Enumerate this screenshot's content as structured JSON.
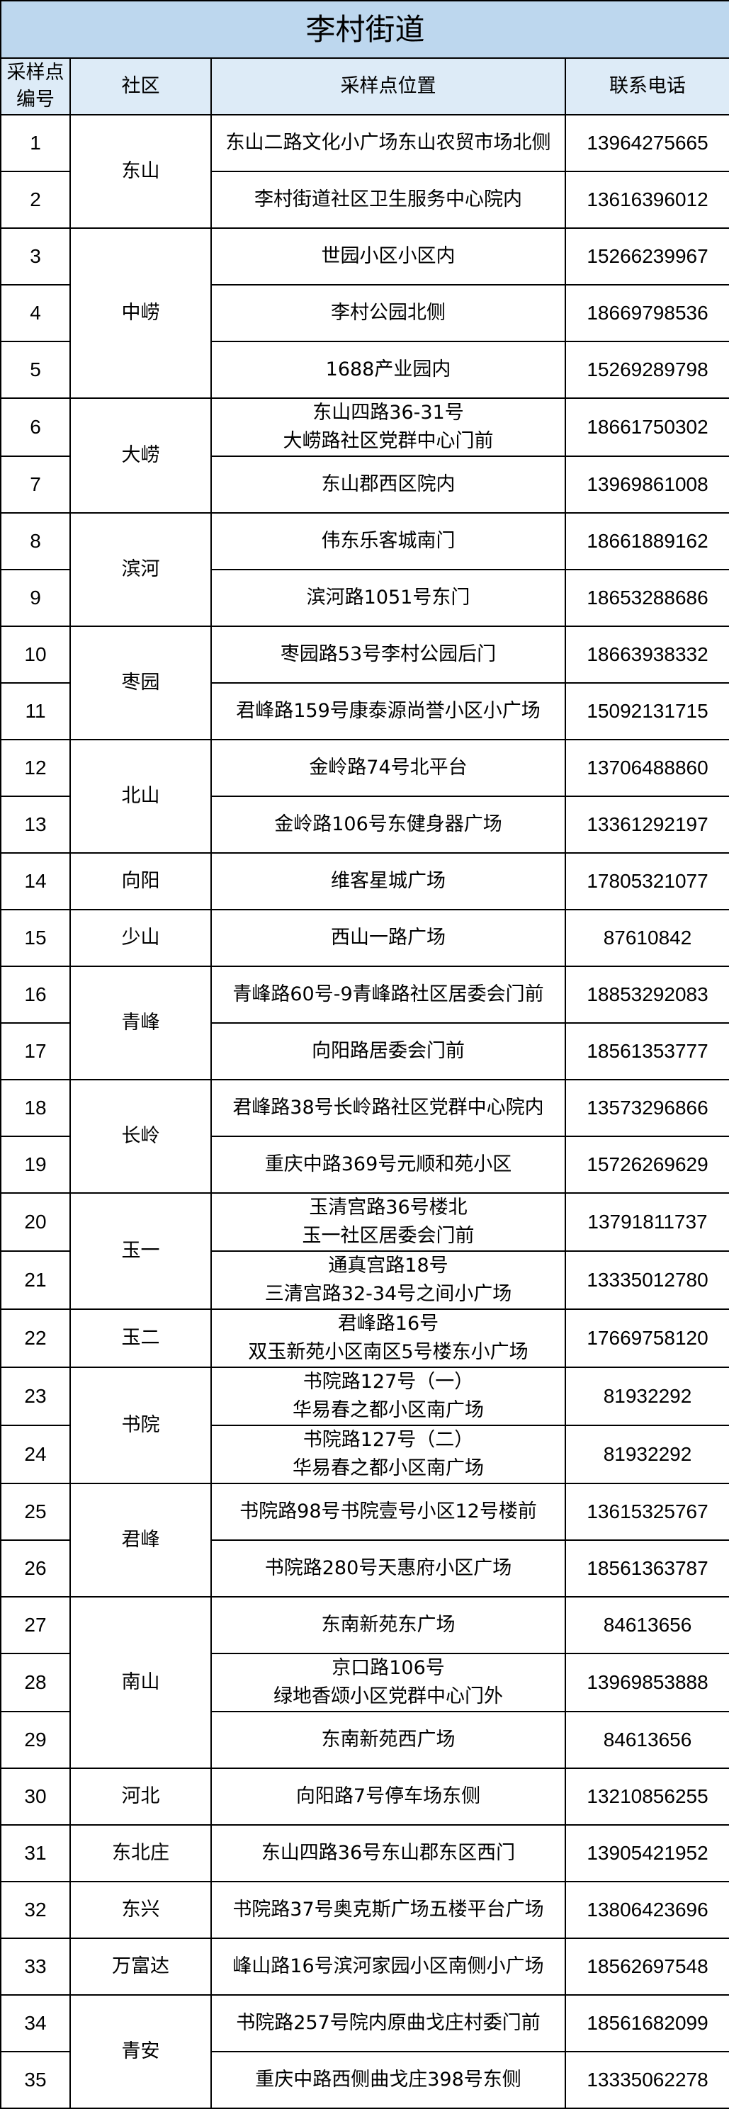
{
  "title": "李村街道",
  "headers": {
    "no_line1": "采样点",
    "no_line2": "编号",
    "community": "社区",
    "location": "采样点位置",
    "phone": "联系电话"
  },
  "colors": {
    "title_bg": "#bdd7ee",
    "header_bg": "#ddebf7",
    "border": "#000000"
  },
  "groups": [
    {
      "community": "东山",
      "rows": [
        {
          "no": "1",
          "location": [
            "东山二路文化小广场东山农贸市场北侧"
          ],
          "phone": "13964275665"
        },
        {
          "no": "2",
          "location": [
            "李村街道社区卫生服务中心院内"
          ],
          "phone": "13616396012"
        }
      ]
    },
    {
      "community": "中崂",
      "rows": [
        {
          "no": "3",
          "location": [
            "世园小区小区内"
          ],
          "phone": "15266239967"
        },
        {
          "no": "4",
          "location": [
            "李村公园北侧"
          ],
          "phone": "18669798536"
        },
        {
          "no": "5",
          "location": [
            "1688产业园内"
          ],
          "phone": "15269289798"
        }
      ]
    },
    {
      "community": "大崂",
      "rows": [
        {
          "no": "6",
          "location": [
            "东山四路36-31号",
            "大崂路社区党群中心门前"
          ],
          "phone": "18661750302"
        },
        {
          "no": "7",
          "location": [
            "东山郡西区院内"
          ],
          "phone": "13969861008"
        }
      ]
    },
    {
      "community": "滨河",
      "rows": [
        {
          "no": "8",
          "location": [
            "伟东乐客城南门"
          ],
          "phone": "18661889162"
        },
        {
          "no": "9",
          "location": [
            "滨河路1051号东门"
          ],
          "phone": "18653288686"
        }
      ]
    },
    {
      "community": "枣园",
      "rows": [
        {
          "no": "10",
          "location": [
            "枣园路53号李村公园后门"
          ],
          "phone": "18663938332"
        },
        {
          "no": "11",
          "location": [
            "君峰路159号康泰源尚誉小区小广场"
          ],
          "phone": "15092131715"
        }
      ]
    },
    {
      "community": "北山",
      "rows": [
        {
          "no": "12",
          "location": [
            "金岭路74号北平台"
          ],
          "phone": "13706488860"
        },
        {
          "no": "13",
          "location": [
            "金岭路106号东健身器广场"
          ],
          "phone": "13361292197"
        }
      ]
    },
    {
      "community": "向阳",
      "rows": [
        {
          "no": "14",
          "location": [
            "维客星城广场"
          ],
          "phone": "17805321077"
        }
      ]
    },
    {
      "community": "少山",
      "rows": [
        {
          "no": "15",
          "location": [
            "西山一路广场"
          ],
          "phone": "87610842"
        }
      ]
    },
    {
      "community": "青峰",
      "rows": [
        {
          "no": "16",
          "location": [
            "青峰路60号-9青峰路社区居委会门前"
          ],
          "phone": "18853292083"
        },
        {
          "no": "17",
          "location": [
            "向阳路居委会门前"
          ],
          "phone": "18561353777"
        }
      ]
    },
    {
      "community": "长岭",
      "rows": [
        {
          "no": "18",
          "location": [
            "君峰路38号长岭路社区党群中心院内"
          ],
          "phone": "13573296866"
        },
        {
          "no": "19",
          "location": [
            "重庆中路369号元顺和苑小区"
          ],
          "phone": "15726269629"
        }
      ]
    },
    {
      "community": "玉一",
      "rows": [
        {
          "no": "20",
          "location": [
            "玉清宫路36号楼北",
            "玉一社区居委会门前"
          ],
          "phone": "13791811737"
        },
        {
          "no": "21",
          "location": [
            "通真宫路18号",
            "三清宫路32-34号之间小广场"
          ],
          "phone": "13335012780"
        }
      ]
    },
    {
      "community": "玉二",
      "rows": [
        {
          "no": "22",
          "location": [
            "君峰路16号",
            "双玉新苑小区南区5号楼东小广场"
          ],
          "phone": "17669758120"
        }
      ]
    },
    {
      "community": "书院",
      "rows": [
        {
          "no": "23",
          "location": [
            "书院路127号（一）",
            "华易春之都小区南广场"
          ],
          "phone": "81932292"
        },
        {
          "no": "24",
          "location": [
            "书院路127号（二）",
            "华易春之都小区南广场"
          ],
          "phone": "81932292"
        }
      ]
    },
    {
      "community": "君峰",
      "rows": [
        {
          "no": "25",
          "location": [
            "书院路98号书院壹号小区12号楼前"
          ],
          "phone": "13615325767"
        },
        {
          "no": "26",
          "location": [
            "书院路280号天惠府小区广场"
          ],
          "phone": "18561363787"
        }
      ]
    },
    {
      "community": "南山",
      "rows": [
        {
          "no": "27",
          "location": [
            "东南新苑东广场"
          ],
          "phone": "84613656"
        },
        {
          "no": "28",
          "location": [
            "京口路106号",
            "绿地香颂小区党群中心门外"
          ],
          "phone": "13969853888"
        },
        {
          "no": "29",
          "location": [
            "东南新苑西广场"
          ],
          "phone": "84613656"
        }
      ]
    },
    {
      "community": "河北",
      "rows": [
        {
          "no": "30",
          "location": [
            "向阳路7号停车场东侧"
          ],
          "phone": "13210856255"
        }
      ]
    },
    {
      "community": "东北庄",
      "rows": [
        {
          "no": "31",
          "location": [
            "东山四路36号东山郡东区西门"
          ],
          "phone": "13905421952"
        }
      ]
    },
    {
      "community": "东兴",
      "rows": [
        {
          "no": "32",
          "location": [
            "书院路37号奥克斯广场五楼平台广场"
          ],
          "phone": "13806423696"
        }
      ]
    },
    {
      "community": "万富达",
      "rows": [
        {
          "no": "33",
          "location": [
            "峰山路16号滨河家园小区南侧小广场"
          ],
          "phone": "18562697548"
        }
      ]
    },
    {
      "community": "青安",
      "rows": [
        {
          "no": "34",
          "location": [
            "书院路257号院内原曲戈庄村委门前"
          ],
          "phone": "18561682099"
        },
        {
          "no": "35",
          "location": [
            "重庆中路西侧曲戈庄398号东侧"
          ],
          "phone": "13335062278"
        }
      ]
    }
  ]
}
